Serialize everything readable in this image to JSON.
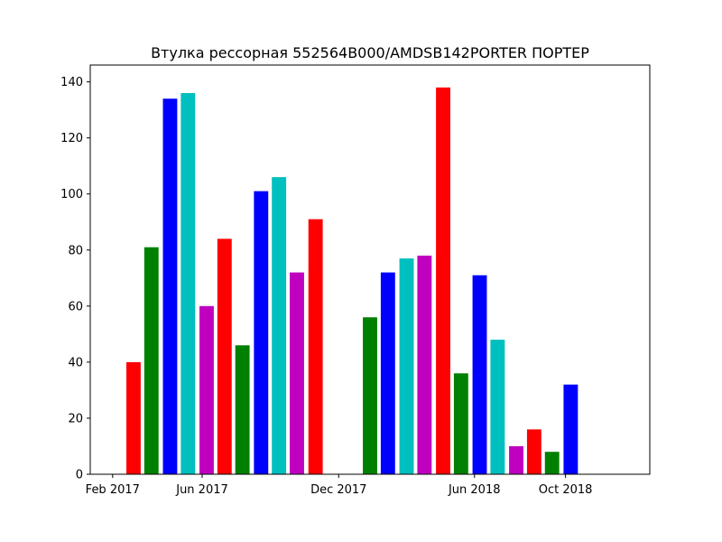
{
  "chart_data": {
    "type": "bar",
    "title": "Втулка рессорная 552564B000/AMDSB142PORTER ПОРТЕР",
    "xlabel": "",
    "ylabel": "",
    "x_axis": {
      "type": "time",
      "range": [
        "2017-01-02",
        "2019-01-22"
      ],
      "tick_labels": [
        {
          "date": "2017-02-01",
          "label": "Feb 2017"
        },
        {
          "date": "2017-06-01",
          "label": "Jun 2017"
        },
        {
          "date": "2017-12-01",
          "label": "Dec 2017"
        },
        {
          "date": "2018-06-01",
          "label": "Jun 2018"
        },
        {
          "date": "2018-10-01",
          "label": "Oct 2018"
        }
      ]
    },
    "y_axis": {
      "range": [
        0,
        146
      ],
      "ticks": [
        0,
        20,
        40,
        60,
        80,
        100,
        120,
        140
      ]
    },
    "grid": false,
    "legend": "none",
    "bar_colors": [
      "#ff0000",
      "#008000",
      "#0000ff",
      "#00bfbf",
      "#bf00bf"
    ],
    "points": [
      {
        "date": "2017-03-01",
        "value": 40
      },
      {
        "date": "2017-03-25",
        "value": 81
      },
      {
        "date": "2017-04-19",
        "value": 134
      },
      {
        "date": "2017-05-13",
        "value": 136
      },
      {
        "date": "2017-06-07",
        "value": 60
      },
      {
        "date": "2017-07-01",
        "value": 84
      },
      {
        "date": "2017-07-25",
        "value": 46
      },
      {
        "date": "2017-08-19",
        "value": 101
      },
      {
        "date": "2017-09-12",
        "value": 106
      },
      {
        "date": "2017-10-06",
        "value": 72
      },
      {
        "date": "2017-10-31",
        "value": 91
      },
      {
        "date": "2018-01-12",
        "value": 56
      },
      {
        "date": "2018-02-05",
        "value": 72
      },
      {
        "date": "2018-03-02",
        "value": 77
      },
      {
        "date": "2018-03-26",
        "value": 78
      },
      {
        "date": "2018-04-20",
        "value": 138
      },
      {
        "date": "2018-05-14",
        "value": 36
      },
      {
        "date": "2018-06-08",
        "value": 71
      },
      {
        "date": "2018-07-02",
        "value": 48
      },
      {
        "date": "2018-07-27",
        "value": 10
      },
      {
        "date": "2018-08-20",
        "value": 16
      },
      {
        "date": "2018-09-13",
        "value": 8
      },
      {
        "date": "2018-10-08",
        "value": 32
      }
    ]
  }
}
